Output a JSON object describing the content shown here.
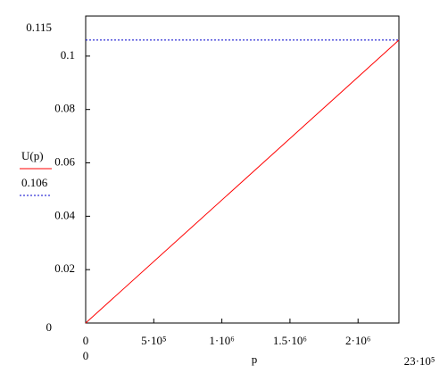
{
  "chart_data": {
    "type": "line",
    "x_label": "p",
    "x": [
      0,
      2300000
    ],
    "series": [
      {
        "name": "U(p)",
        "color": "#ff0000",
        "dash": "solid",
        "values": [
          0,
          0.106
        ]
      },
      {
        "name": "0.106",
        "color": "#0000cc",
        "dash": "dotted",
        "values": [
          0.106,
          0.106
        ]
      }
    ],
    "xlim": [
      0,
      {
        "value": 2300000,
        "label": "23·10⁵"
      }
    ],
    "ylim": [
      0,
      0.115
    ],
    "xticks": [
      0,
      {
        "value": 500000,
        "label": "5·10⁵"
      },
      {
        "value": 1000000,
        "label": "1·10⁶"
      },
      {
        "value": 1500000,
        "label": "1.5·10⁶"
      },
      {
        "value": 2000000,
        "label": "2·10⁶"
      }
    ],
    "yticks": [
      0.02,
      0.04,
      0.06,
      0.08,
      0.1
    ],
    "grid": false
  }
}
